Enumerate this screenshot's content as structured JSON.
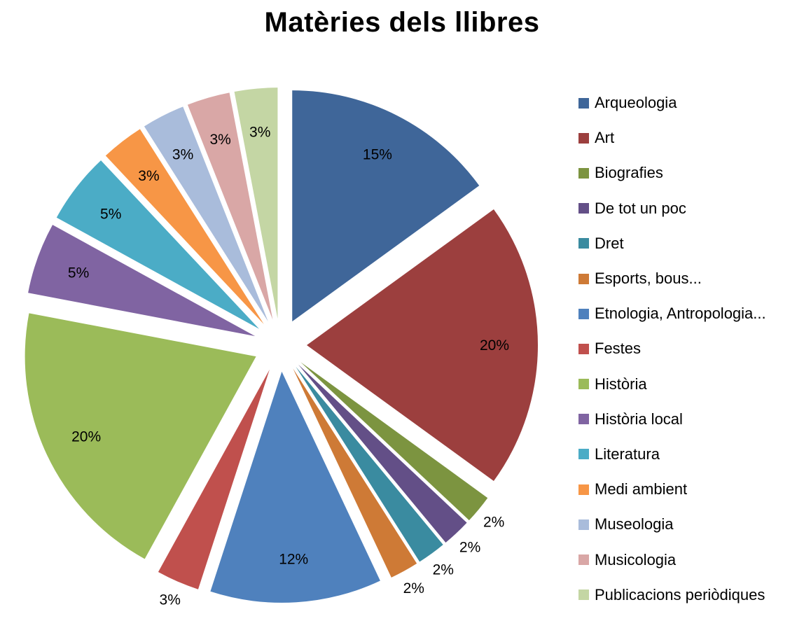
{
  "chart_data": {
    "type": "pie",
    "title": "Matèries dels llibres",
    "exploded": true,
    "legend_position": "right",
    "slices": [
      {
        "name": "Arqueologia",
        "value": 15,
        "label": "15%",
        "color": "#3F6699"
      },
      {
        "name": "Art",
        "value": 20,
        "label": "20%",
        "color": "#9C3F3E"
      },
      {
        "name": "Biografies",
        "value": 2,
        "label": "2%",
        "color": "#7C9440"
      },
      {
        "name": "De tot un poc",
        "value": 2,
        "label": "2%",
        "color": "#634F87"
      },
      {
        "name": "Dret",
        "value": 2,
        "label": "2%",
        "color": "#3A8BA0"
      },
      {
        "name": "Esports, bous...",
        "value": 2,
        "label": "2%",
        "color": "#CE7A36"
      },
      {
        "name": "Etnologia, Antropologia...",
        "value": 12,
        "label": "12%",
        "color": "#4F81BD"
      },
      {
        "name": "Festes",
        "value": 3,
        "label": "3%",
        "color": "#C0504D"
      },
      {
        "name": "Història",
        "value": 20,
        "label": "20%",
        "color": "#9BBB59"
      },
      {
        "name": "Història local",
        "value": 5,
        "label": "5%",
        "color": "#8064A2"
      },
      {
        "name": "Literatura",
        "value": 5,
        "label": "5%",
        "color": "#4BACC6"
      },
      {
        "name": "Medi ambient",
        "value": 3,
        "label": "3%",
        "color": "#F79646"
      },
      {
        "name": "Museologia",
        "value": 3,
        "label": "3%",
        "color": "#A9BCDB"
      },
      {
        "name": "Musicologia",
        "value": 3,
        "label": "3%",
        "color": "#D9A7A6"
      },
      {
        "name": "Publicacions periòdiques",
        "value": 3,
        "label": "3%",
        "color": "#C4D6A4"
      }
    ]
  }
}
